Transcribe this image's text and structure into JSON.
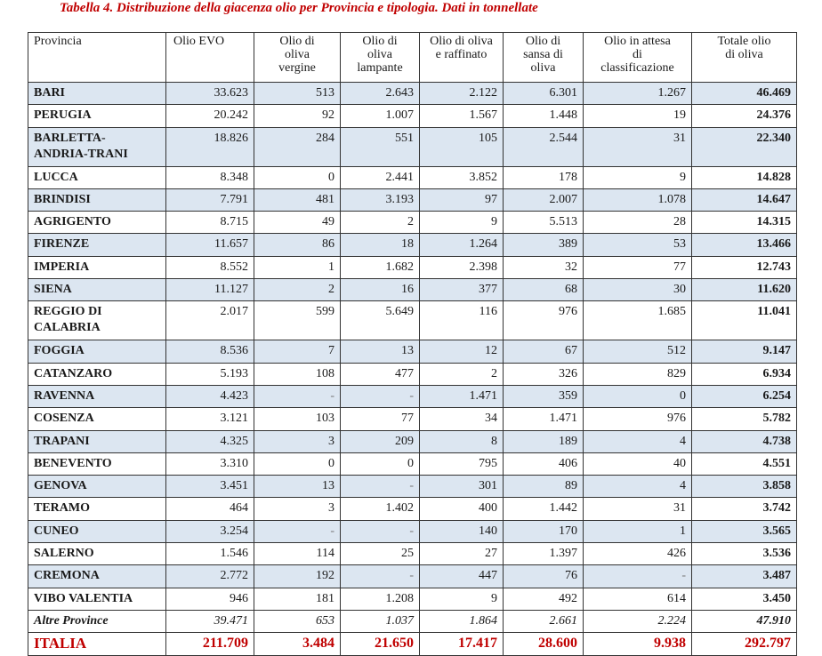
{
  "caption": "Tabella 4. Distribuzione della giacenza olio per Provincia e tipologia. Dati in tonnellate",
  "headers": [
    "Provincia",
    "Olio EVO",
    "Olio di\noliva\nvergine",
    "Olio di\noliva\nlampante",
    "Olio di oliva\ne raffinato",
    "Olio di\nsansa di\noliva",
    "Olio in attesa\ndi\nclassificazione",
    "Totale olio\ndi oliva"
  ],
  "rows": [
    {
      "name": "BARI",
      "values": [
        "33.623",
        "513",
        "2.643",
        "2.122",
        "6.301",
        "1.267",
        "46.469"
      ]
    },
    {
      "name": "PERUGIA",
      "values": [
        "20.242",
        "92",
        "1.007",
        "1.567",
        "1.448",
        "19",
        "24.376"
      ]
    },
    {
      "name": "BARLETTA-\nANDRIA-TRANI",
      "values": [
        "18.826",
        "284",
        "551",
        "105",
        "2.544",
        "31",
        "22.340"
      ]
    },
    {
      "name": "LUCCA",
      "values": [
        "8.348",
        "0",
        "2.441",
        "3.852",
        "178",
        "9",
        "14.828"
      ]
    },
    {
      "name": "BRINDISI",
      "values": [
        "7.791",
        "481",
        "3.193",
        "97",
        "2.007",
        "1.078",
        "14.647"
      ]
    },
    {
      "name": "AGRIGENTO",
      "values": [
        "8.715",
        "49",
        "2",
        "9",
        "5.513",
        "28",
        "14.315"
      ]
    },
    {
      "name": "FIRENZE",
      "values": [
        "11.657",
        "86",
        "18",
        "1.264",
        "389",
        "53",
        "13.466"
      ]
    },
    {
      "name": "IMPERIA",
      "values": [
        "8.552",
        "1",
        "1.682",
        "2.398",
        "32",
        "77",
        "12.743"
      ]
    },
    {
      "name": "SIENA",
      "values": [
        "11.127",
        "2",
        "16",
        "377",
        "68",
        "30",
        "11.620"
      ]
    },
    {
      "name": "REGGIO DI\nCALABRIA",
      "values": [
        "2.017",
        "599",
        "5.649",
        "116",
        "976",
        "1.685",
        "11.041"
      ]
    },
    {
      "name": "FOGGIA",
      "values": [
        "8.536",
        "7",
        "13",
        "12",
        "67",
        "512",
        "9.147"
      ]
    },
    {
      "name": "CATANZARO",
      "values": [
        "5.193",
        "108",
        "477",
        "2",
        "326",
        "829",
        "6.934"
      ]
    },
    {
      "name": "RAVENNA",
      "values": [
        "4.423",
        "-",
        "-",
        "1.471",
        "359",
        "0",
        "6.254"
      ]
    },
    {
      "name": "COSENZA",
      "values": [
        "3.121",
        "103",
        "77",
        "34",
        "1.471",
        "976",
        "5.782"
      ]
    },
    {
      "name": "TRAPANI",
      "values": [
        "4.325",
        "3",
        "209",
        "8",
        "189",
        "4",
        "4.738"
      ]
    },
    {
      "name": "BENEVENTO",
      "values": [
        "3.310",
        "0",
        "0",
        "795",
        "406",
        "40",
        "4.551"
      ]
    },
    {
      "name": "GENOVA",
      "values": [
        "3.451",
        "13",
        "-",
        "301",
        "89",
        "4",
        "3.858"
      ]
    },
    {
      "name": "TERAMO",
      "values": [
        "464",
        "3",
        "1.402",
        "400",
        "1.442",
        "31",
        "3.742"
      ]
    },
    {
      "name": "CUNEO",
      "values": [
        "3.254",
        "-",
        "-",
        "140",
        "170",
        "1",
        "3.565"
      ]
    },
    {
      "name": "SALERNO",
      "values": [
        "1.546",
        "114",
        "25",
        "27",
        "1.397",
        "426",
        "3.536"
      ]
    },
    {
      "name": "CREMONA",
      "values": [
        "2.772",
        "192",
        "-",
        "447",
        "76",
        "-",
        "3.487"
      ]
    },
    {
      "name": "VIBO VALENTIA",
      "values": [
        "946",
        "181",
        "1.208",
        "9",
        "492",
        "614",
        "3.450"
      ]
    },
    {
      "name": "Altre Province",
      "values": [
        "39.471",
        "653",
        "1.037",
        "1.864",
        "2.661",
        "2.224",
        "47.910"
      ]
    },
    {
      "name": "ITALIA",
      "values": [
        "211.709",
        "3.484",
        "21.650",
        "17.417",
        "28.600",
        "9.938",
        "292.797"
      ]
    }
  ],
  "colors": {
    "title_red": "#c00000",
    "row_shade": "#dce6f1",
    "grid_line": "#333333"
  }
}
